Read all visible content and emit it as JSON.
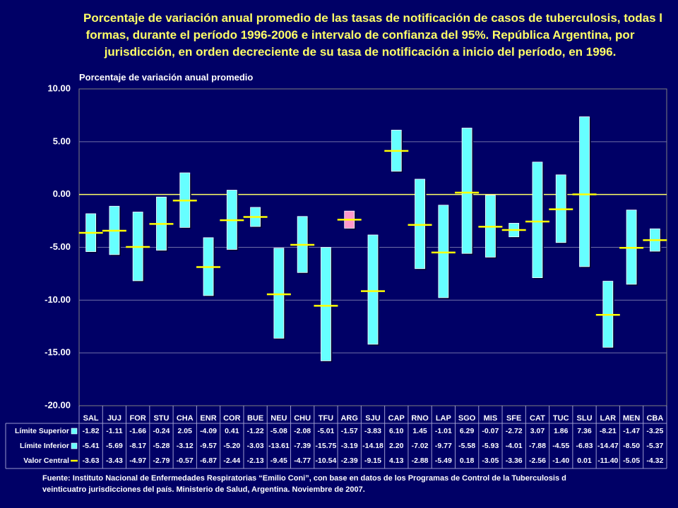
{
  "title": {
    "line1": "Porcentaje de variación anual promedio de las tasas de notificación de casos de tuberculosis, todas l",
    "line2": "formas, durante el período 1996-2006 e intervalo de confianza del 95%. República Argentina, por",
    "line3": "jurisdicción, en orden decreciente de su tasa de notificación a inicio del período, en 1996."
  },
  "source": {
    "line1": "Fuente: Instituto Nacional de Enfermedades Respiratorias “Emilio Coni”, con base en datos de los Programas de Control de la Tuberculosis d",
    "line2": "veinticuatro jurisdicciones del país. Ministerio de Salud, Argentina. Noviembre de 2007."
  },
  "colors": {
    "background": "#000066",
    "bar": "#66ffff",
    "highlight_bar": "#ff99cc",
    "central_marker": "#ffff00",
    "title": "#ffff66",
    "text": "#ffffff"
  },
  "chart_data": {
    "type": "bar",
    "subtype": "floating range with central value marker",
    "ylabel": "Porcentaje de variación anual promedio",
    "ylim": [
      -20,
      10
    ],
    "yticks": [
      "10.00",
      "5.00",
      "0.00",
      "-5.00",
      "-10.00",
      "-15.00",
      "-20.00"
    ],
    "ytick_values": [
      10,
      5,
      0,
      -5,
      -10,
      -15,
      -20
    ],
    "grid": true,
    "highlight_category": "ARG",
    "categories": [
      "SAL",
      "JUJ",
      "FOR",
      "STU",
      "CHA",
      "ENR",
      "COR",
      "BUE",
      "NEU",
      "CHU",
      "TFU",
      "ARG",
      "SJU",
      "CAP",
      "RNO",
      "LAP",
      "SGO",
      "MIS",
      "SFE",
      "CAT",
      "TUC",
      "SLU",
      "LAR",
      "MEN",
      "CBA"
    ],
    "series": [
      {
        "name": "Límite Superior",
        "values": [
          -1.82,
          -1.11,
          -1.66,
          -0.24,
          2.05,
          -4.09,
          0.41,
          -1.22,
          -5.08,
          -2.08,
          -5.01,
          -1.57,
          -3.83,
          6.1,
          1.45,
          -1.01,
          6.29,
          -0.07,
          -2.72,
          3.07,
          1.86,
          7.36,
          -8.21,
          -1.47,
          -3.25
        ],
        "labels": [
          "-1.82",
          "-1.11",
          "-1.66",
          "-0.24",
          "2.05",
          "-4.09",
          "0.41",
          "-1.22",
          "-5.08",
          "-2.08",
          "-5.01",
          "-1.57",
          "-3.83",
          "6.10",
          "1.45",
          "-1.01",
          "6.29",
          "-0.07",
          "-2.72",
          "3.07",
          "1.86",
          "7.36",
          "-8.21",
          "-1.47",
          "-3.25"
        ]
      },
      {
        "name": "Límite Inferior",
        "values": [
          -5.41,
          -5.69,
          -8.17,
          -5.28,
          -3.12,
          -9.57,
          -5.2,
          -3.03,
          -13.61,
          -7.39,
          -15.75,
          -3.19,
          -14.18,
          2.2,
          -7.02,
          -9.77,
          -5.58,
          -5.93,
          -4.01,
          -7.88,
          -4.55,
          -6.83,
          -14.47,
          -8.5,
          -5.37
        ],
        "labels": [
          "-5.41",
          "-5.69",
          "-8.17",
          "-5.28",
          "-3.12",
          "-9.57",
          "-5.20",
          "-3.03",
          "-13.61",
          "-7.39",
          "-15.75",
          "-3.19",
          "-14.18",
          "2.20",
          "-7.02",
          "-9.77",
          "-5.58",
          "-5.93",
          "-4.01",
          "-7.88",
          "-4.55",
          "-6.83",
          "-14.47",
          "-8.50",
          "-5.37"
        ]
      },
      {
        "name": "Valor Central",
        "values": [
          -3.63,
          -3.43,
          -4.97,
          -2.79,
          -0.57,
          -6.87,
          -2.44,
          -2.13,
          -9.45,
          -4.77,
          -10.54,
          -2.39,
          -9.15,
          4.13,
          -2.88,
          -5.49,
          0.18,
          -3.05,
          -3.36,
          -2.56,
          -1.4,
          0.01,
          -11.4,
          -5.05,
          -4.32
        ],
        "labels": [
          "-3.63",
          "-3.43",
          "-4.97",
          "-2.79",
          "-0.57",
          "-6.87",
          "-2.44",
          "-2.13",
          "-9.45",
          "-4.77",
          "-10.54",
          "-2.39",
          "-9.15",
          "4.13",
          "-2.88",
          "-5.49",
          "0.18",
          "-3.05",
          "-3.36",
          "-2.56",
          "-1.40",
          "0.01",
          "-11.40",
          "-5.05",
          "-4.32"
        ]
      }
    ]
  }
}
